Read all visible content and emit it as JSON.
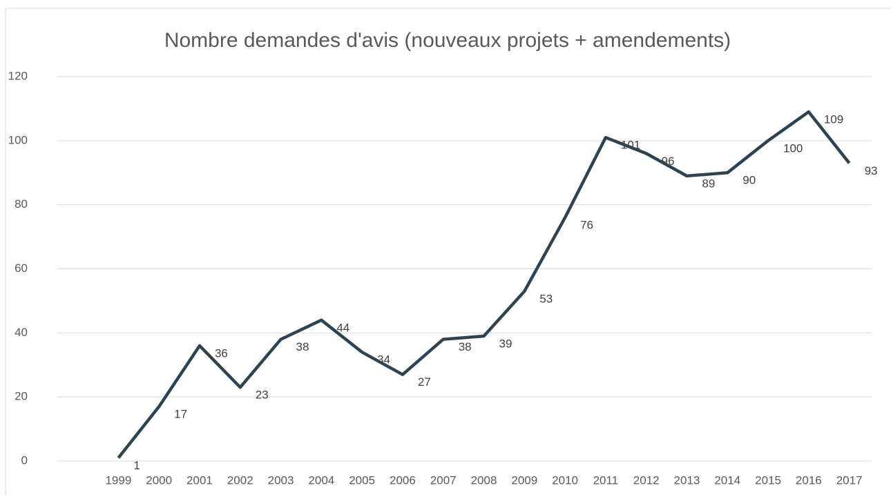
{
  "chart_data": {
    "type": "line",
    "title": "Nombre demandes d'avis (nouveaux projets + amendements)",
    "categories": [
      "1999",
      "2000",
      "2001",
      "2002",
      "2003",
      "2004",
      "2005",
      "2006",
      "2007",
      "2008",
      "2009",
      "2010",
      "2011",
      "2012",
      "2013",
      "2014",
      "2015",
      "2016",
      "2017"
    ],
    "series": [
      {
        "name": "Nombre demandes d'avis",
        "color": "#2e4351",
        "values": [
          1,
          17,
          36,
          23,
          38,
          44,
          34,
          27,
          38,
          39,
          53,
          76,
          101,
          96,
          89,
          90,
          100,
          109,
          93
        ]
      }
    ],
    "ylim": [
      0,
      120
    ],
    "yticks": [
      0,
      20,
      40,
      60,
      80,
      100,
      120
    ],
    "grid": true
  }
}
